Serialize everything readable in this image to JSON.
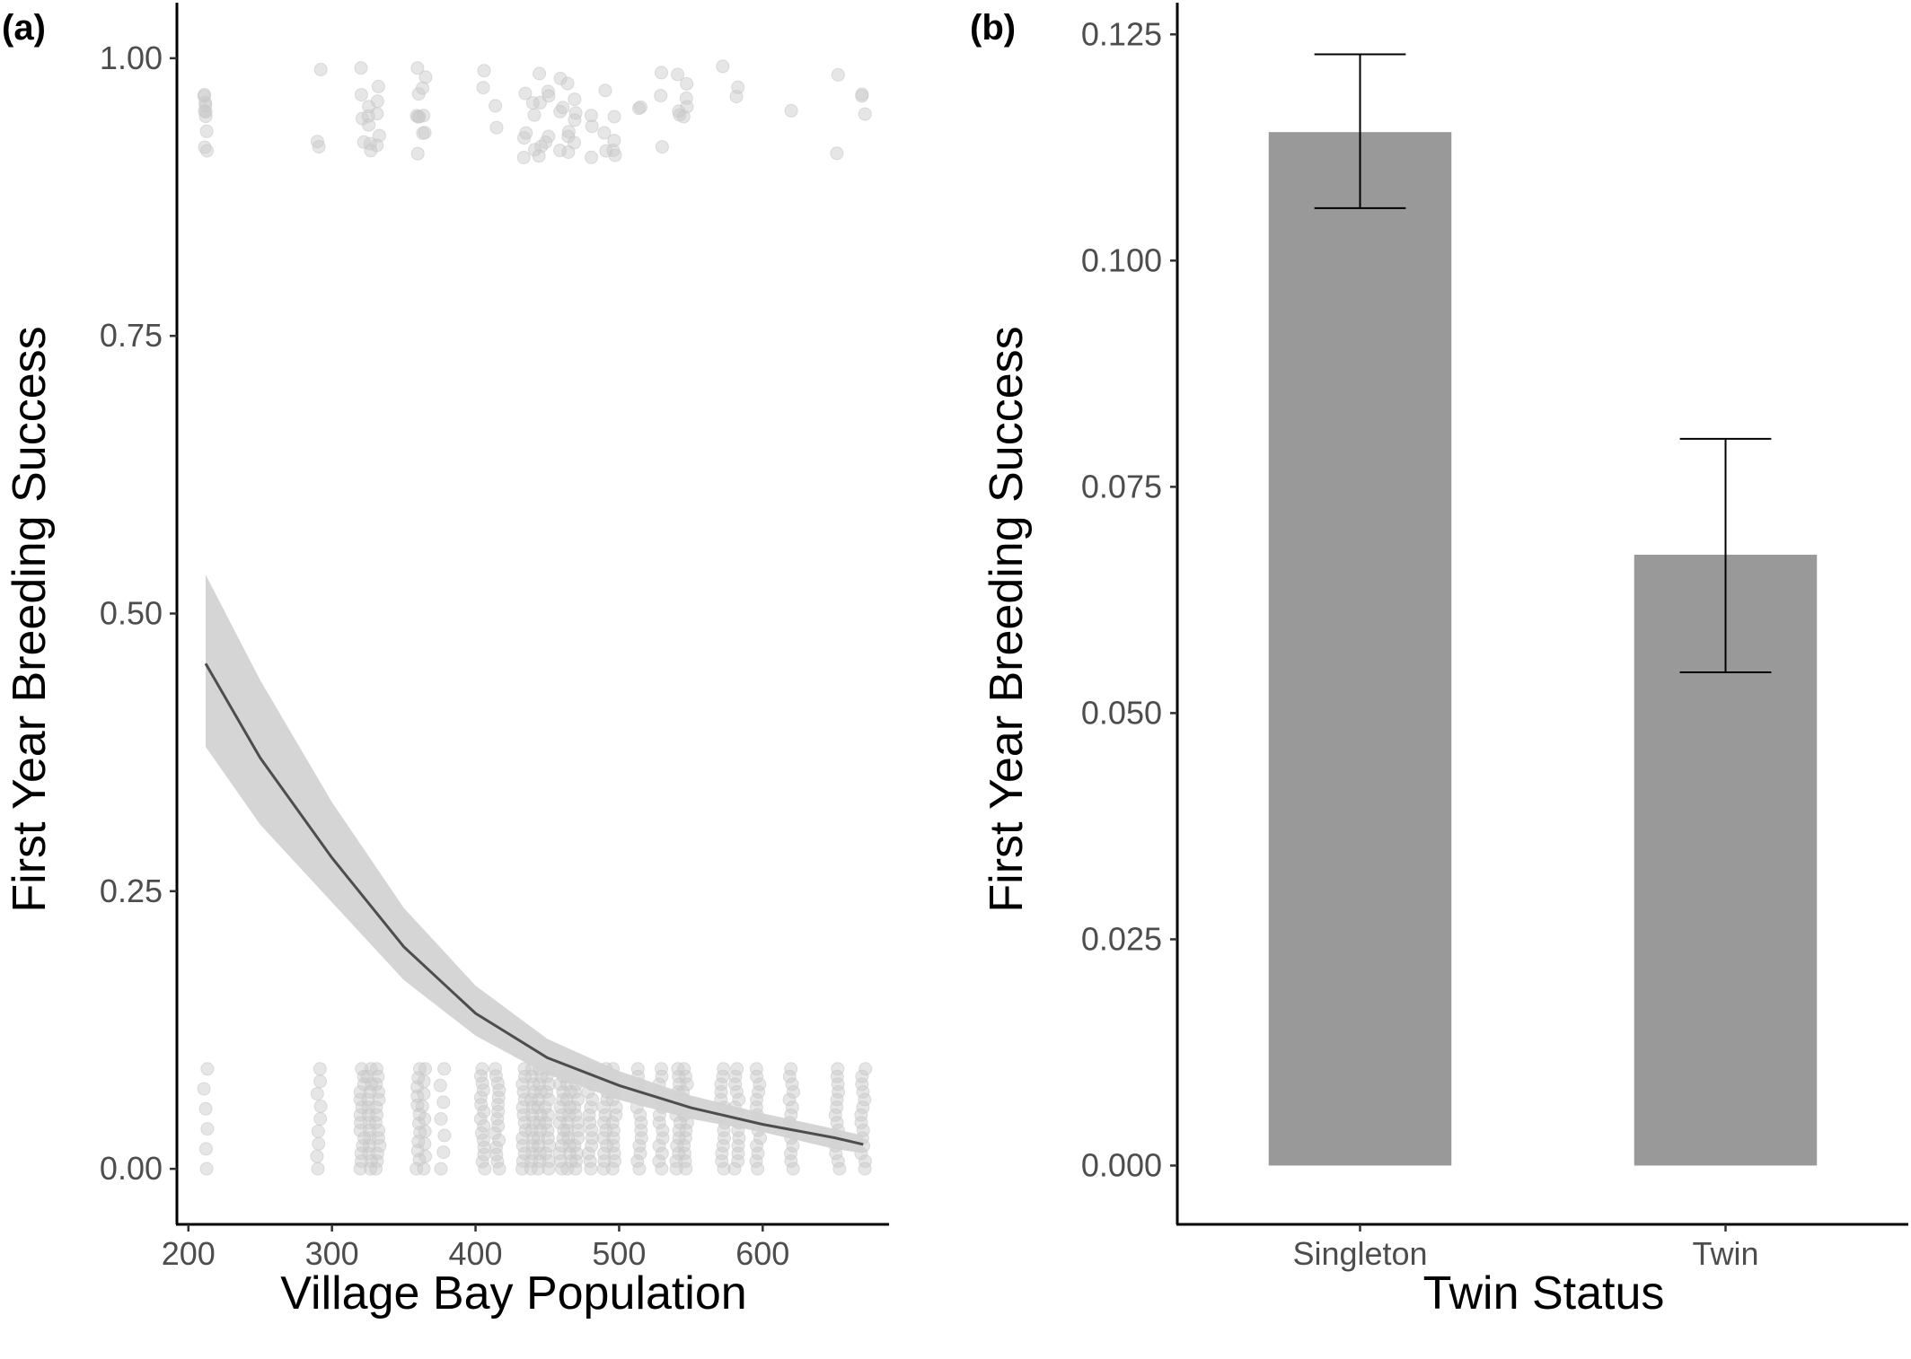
{
  "chart_data": [
    {
      "panel": "(a)",
      "type": "scatter",
      "xlabel": "Village Bay Population",
      "ylabel": "First Year Breeding Success",
      "xlim": [
        192,
        688
      ],
      "ylim": [
        -0.05,
        1.05
      ],
      "xticks": [
        200,
        300,
        400,
        500,
        600
      ],
      "yticks": [
        0.0,
        0.25,
        0.5,
        0.75,
        1.0
      ],
      "ytick_labels": [
        "0.00",
        "0.25",
        "0.50",
        "0.75",
        "1.00"
      ],
      "point_color": "#c8c8c8",
      "points_y1_x": [
        212,
        212,
        212,
        212,
        212,
        212,
        212,
        212,
        212,
        212,
        291,
        291,
        291,
        321,
        321,
        321,
        321,
        326,
        326,
        326,
        326,
        326,
        332,
        332,
        332,
        332,
        332,
        360,
        360,
        360,
        360,
        360,
        360,
        364,
        364,
        364,
        364,
        364,
        405,
        405,
        415,
        415,
        434,
        434,
        434,
        434,
        440,
        440,
        440,
        445,
        445,
        445,
        445,
        450,
        450,
        450,
        450,
        460,
        460,
        460,
        460,
        465,
        465,
        465,
        465,
        470,
        470,
        470,
        470,
        480,
        480,
        480,
        490,
        490,
        490,
        497,
        497,
        497,
        497,
        514,
        514,
        529,
        529,
        529,
        541,
        541,
        541,
        546,
        546,
        546,
        546,
        572,
        582,
        582,
        620,
        652,
        652,
        670,
        670,
        670
      ],
      "points_y0_x": [
        212,
        212,
        212,
        212,
        212,
        212,
        291,
        291,
        291,
        291,
        291,
        291,
        291,
        291,
        291,
        321,
        321,
        321,
        321,
        321,
        321,
        321,
        321,
        321,
        321,
        321,
        321,
        321,
        321,
        326,
        326,
        326,
        326,
        326,
        326,
        326,
        326,
        326,
        326,
        326,
        326,
        326,
        326,
        332,
        332,
        332,
        332,
        332,
        332,
        332,
        332,
        332,
        332,
        332,
        332,
        332,
        332,
        360,
        360,
        360,
        360,
        360,
        360,
        360,
        360,
        360,
        360,
        360,
        360,
        364,
        364,
        364,
        364,
        364,
        364,
        364,
        364,
        364,
        377,
        377,
        377,
        377,
        377,
        377,
        377,
        405,
        405,
        405,
        405,
        405,
        405,
        405,
        405,
        405,
        405,
        405,
        405,
        405,
        405,
        405,
        415,
        415,
        415,
        415,
        415,
        415,
        415,
        415,
        415,
        415,
        415,
        415,
        415,
        415,
        415,
        434,
        434,
        434,
        434,
        434,
        434,
        434,
        434,
        434,
        434,
        434,
        434,
        434,
        434,
        440,
        440,
        440,
        440,
        440,
        440,
        440,
        440,
        440,
        440,
        440,
        440,
        440,
        440,
        445,
        445,
        445,
        445,
        445,
        445,
        445,
        445,
        445,
        445,
        445,
        445,
        445,
        445,
        450,
        450,
        450,
        450,
        450,
        450,
        450,
        450,
        450,
        450,
        450,
        450,
        450,
        450,
        460,
        460,
        460,
        460,
        460,
        460,
        460,
        460,
        460,
        460,
        460,
        460,
        460,
        460,
        465,
        465,
        465,
        465,
        465,
        465,
        465,
        465,
        465,
        465,
        465,
        465,
        465,
        465,
        470,
        470,
        470,
        470,
        470,
        470,
        470,
        470,
        470,
        470,
        470,
        470,
        470,
        470,
        480,
        480,
        480,
        480,
        480,
        480,
        480,
        480,
        480,
        480,
        480,
        480,
        480,
        480,
        490,
        490,
        490,
        490,
        490,
        490,
        490,
        490,
        490,
        490,
        490,
        490,
        490,
        490,
        497,
        497,
        497,
        497,
        497,
        497,
        497,
        497,
        497,
        497,
        497,
        497,
        497,
        497,
        514,
        514,
        514,
        514,
        514,
        514,
        514,
        514,
        514,
        514,
        514,
        514,
        514,
        514,
        529,
        529,
        529,
        529,
        529,
        529,
        529,
        529,
        529,
        529,
        529,
        529,
        529,
        529,
        541,
        541,
        541,
        541,
        541,
        541,
        541,
        541,
        541,
        541,
        541,
        541,
        541,
        541,
        546,
        546,
        546,
        546,
        546,
        546,
        546,
        546,
        546,
        546,
        546,
        546,
        546,
        546,
        572,
        572,
        572,
        572,
        572,
        572,
        572,
        572,
        572,
        572,
        572,
        572,
        572,
        572,
        582,
        582,
        582,
        582,
        582,
        582,
        582,
        582,
        582,
        582,
        582,
        582,
        582,
        582,
        597,
        597,
        597,
        597,
        597,
        597,
        597,
        597,
        597,
        597,
        597,
        597,
        597,
        597,
        620,
        620,
        620,
        620,
        620,
        620,
        620,
        620,
        620,
        620,
        620,
        620,
        620,
        620,
        652,
        652,
        652,
        652,
        652,
        652,
        652,
        652,
        652,
        652,
        652,
        652,
        652,
        652,
        670,
        670,
        670,
        670,
        670,
        670,
        670,
        670,
        670,
        670,
        670,
        670,
        670,
        670
      ],
      "fit_line": {
        "x": [
          212,
          250,
          300,
          350,
          400,
          450,
          500,
          550,
          600,
          650,
          670
        ],
        "y": [
          0.455,
          0.37,
          0.28,
          0.2,
          0.14,
          0.1,
          0.075,
          0.055,
          0.04,
          0.028,
          0.022
        ],
        "lower": [
          0.38,
          0.31,
          0.24,
          0.17,
          0.12,
          0.085,
          0.062,
          0.045,
          0.033,
          0.018,
          0.014
        ],
        "upper": [
          0.535,
          0.44,
          0.33,
          0.235,
          0.165,
          0.117,
          0.088,
          0.066,
          0.05,
          0.036,
          0.03
        ],
        "line_color": "#4d4d4d",
        "band_color": "#d3d3d3"
      }
    },
    {
      "panel": "(b)",
      "type": "bar",
      "xlabel": "Twin Status",
      "ylabel": "First Year Breeding Success",
      "categories": [
        "Singleton",
        "Twin"
      ],
      "values": [
        0.1142,
        0.0675
      ],
      "error_low": [
        0.1058,
        0.0545
      ],
      "error_high": [
        0.1228,
        0.0803
      ],
      "ylim": [
        -0.0065,
        0.1285
      ],
      "yticks": [
        0.0,
        0.025,
        0.05,
        0.075,
        0.1,
        0.125
      ],
      "ytick_labels": [
        "0.000",
        "0.025",
        "0.050",
        "0.075",
        "0.100",
        "0.125"
      ],
      "bar_color": "#999999"
    }
  ]
}
